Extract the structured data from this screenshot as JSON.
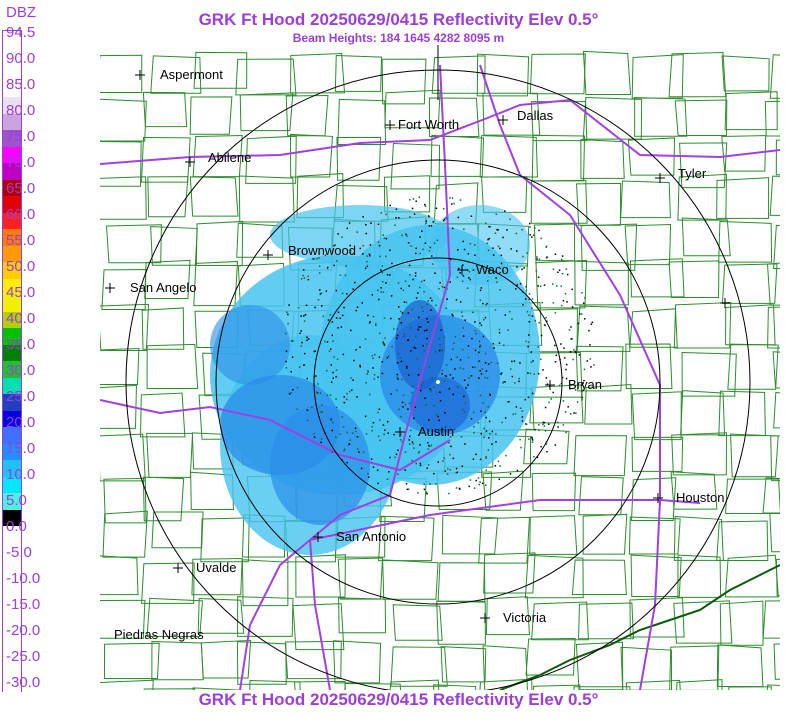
{
  "title": "GRK Ft Hood 20250629/0415 Reflectivity Elev 0.5°",
  "beam_heights": "Beam Heights: 184 1645 4282 8095 m",
  "scale_unit": "DBZ",
  "scale_labels": [
    "94.5",
    "90.0",
    "85.0",
    "80.0",
    "75.0",
    "70.0",
    "65.0",
    "60.0",
    "55.0",
    "50.0",
    "45.0",
    "40.0",
    "35.0",
    "30.0",
    "25.0",
    "20.0",
    "15.0",
    "10.0",
    "5.0",
    "0.0",
    "-5.0",
    "-10.0",
    "-15.0",
    "-20.0",
    "-25.0",
    "-30.0"
  ],
  "scale_colors": [
    "#ffffff",
    "#ffffff",
    "#ffffff",
    "#ffffff",
    "#e9e1f2",
    "#c9a4e0",
    "#9b54c9",
    "#ff00ff",
    "#c000c0",
    "#b00000",
    "#e00000",
    "#ff2020",
    "#ff7a00",
    "#ff9a00",
    "#ffcc00",
    "#ffee00",
    "#f0f000",
    "#b0d000",
    "#00c000",
    "#008000",
    "#20c030",
    "#00e0b0",
    "#2040c0",
    "#0000e0",
    "#4070ff",
    "#2090ff",
    "#20c0f0",
    "#00e8ff",
    "#50f0e0",
    "#000000",
    "#ffffff",
    "#ffffff",
    "#ffffff",
    "#ffffff",
    "#ffffff",
    "#ffffff",
    "#ffffff",
    "#ffffff",
    "#ffffff",
    "#ffffff"
  ],
  "cities": [
    {
      "name": "Aspermont"
    },
    {
      "name": "Fort Worth"
    },
    {
      "name": "Dallas"
    },
    {
      "name": "Abilene"
    },
    {
      "name": "Tyler"
    },
    {
      "name": "Brownwood"
    },
    {
      "name": "Waco"
    },
    {
      "name": "San Angelo"
    },
    {
      "name": "Bryan"
    },
    {
      "name": "Austin"
    },
    {
      "name": "Houston"
    },
    {
      "name": "San Antonio"
    },
    {
      "name": "Uvalde"
    },
    {
      "name": "Victoria"
    },
    {
      "name": "Piedras Negras"
    }
  ],
  "colors": {
    "accent": "#9b3fd6",
    "county_lines": "#2e8b2e",
    "highways": "#a040e0",
    "range_rings": "#000000",
    "echo_light": "#46c3f0",
    "echo_mid": "#2a8de8",
    "echo_dark": "#1a5fd0"
  }
}
